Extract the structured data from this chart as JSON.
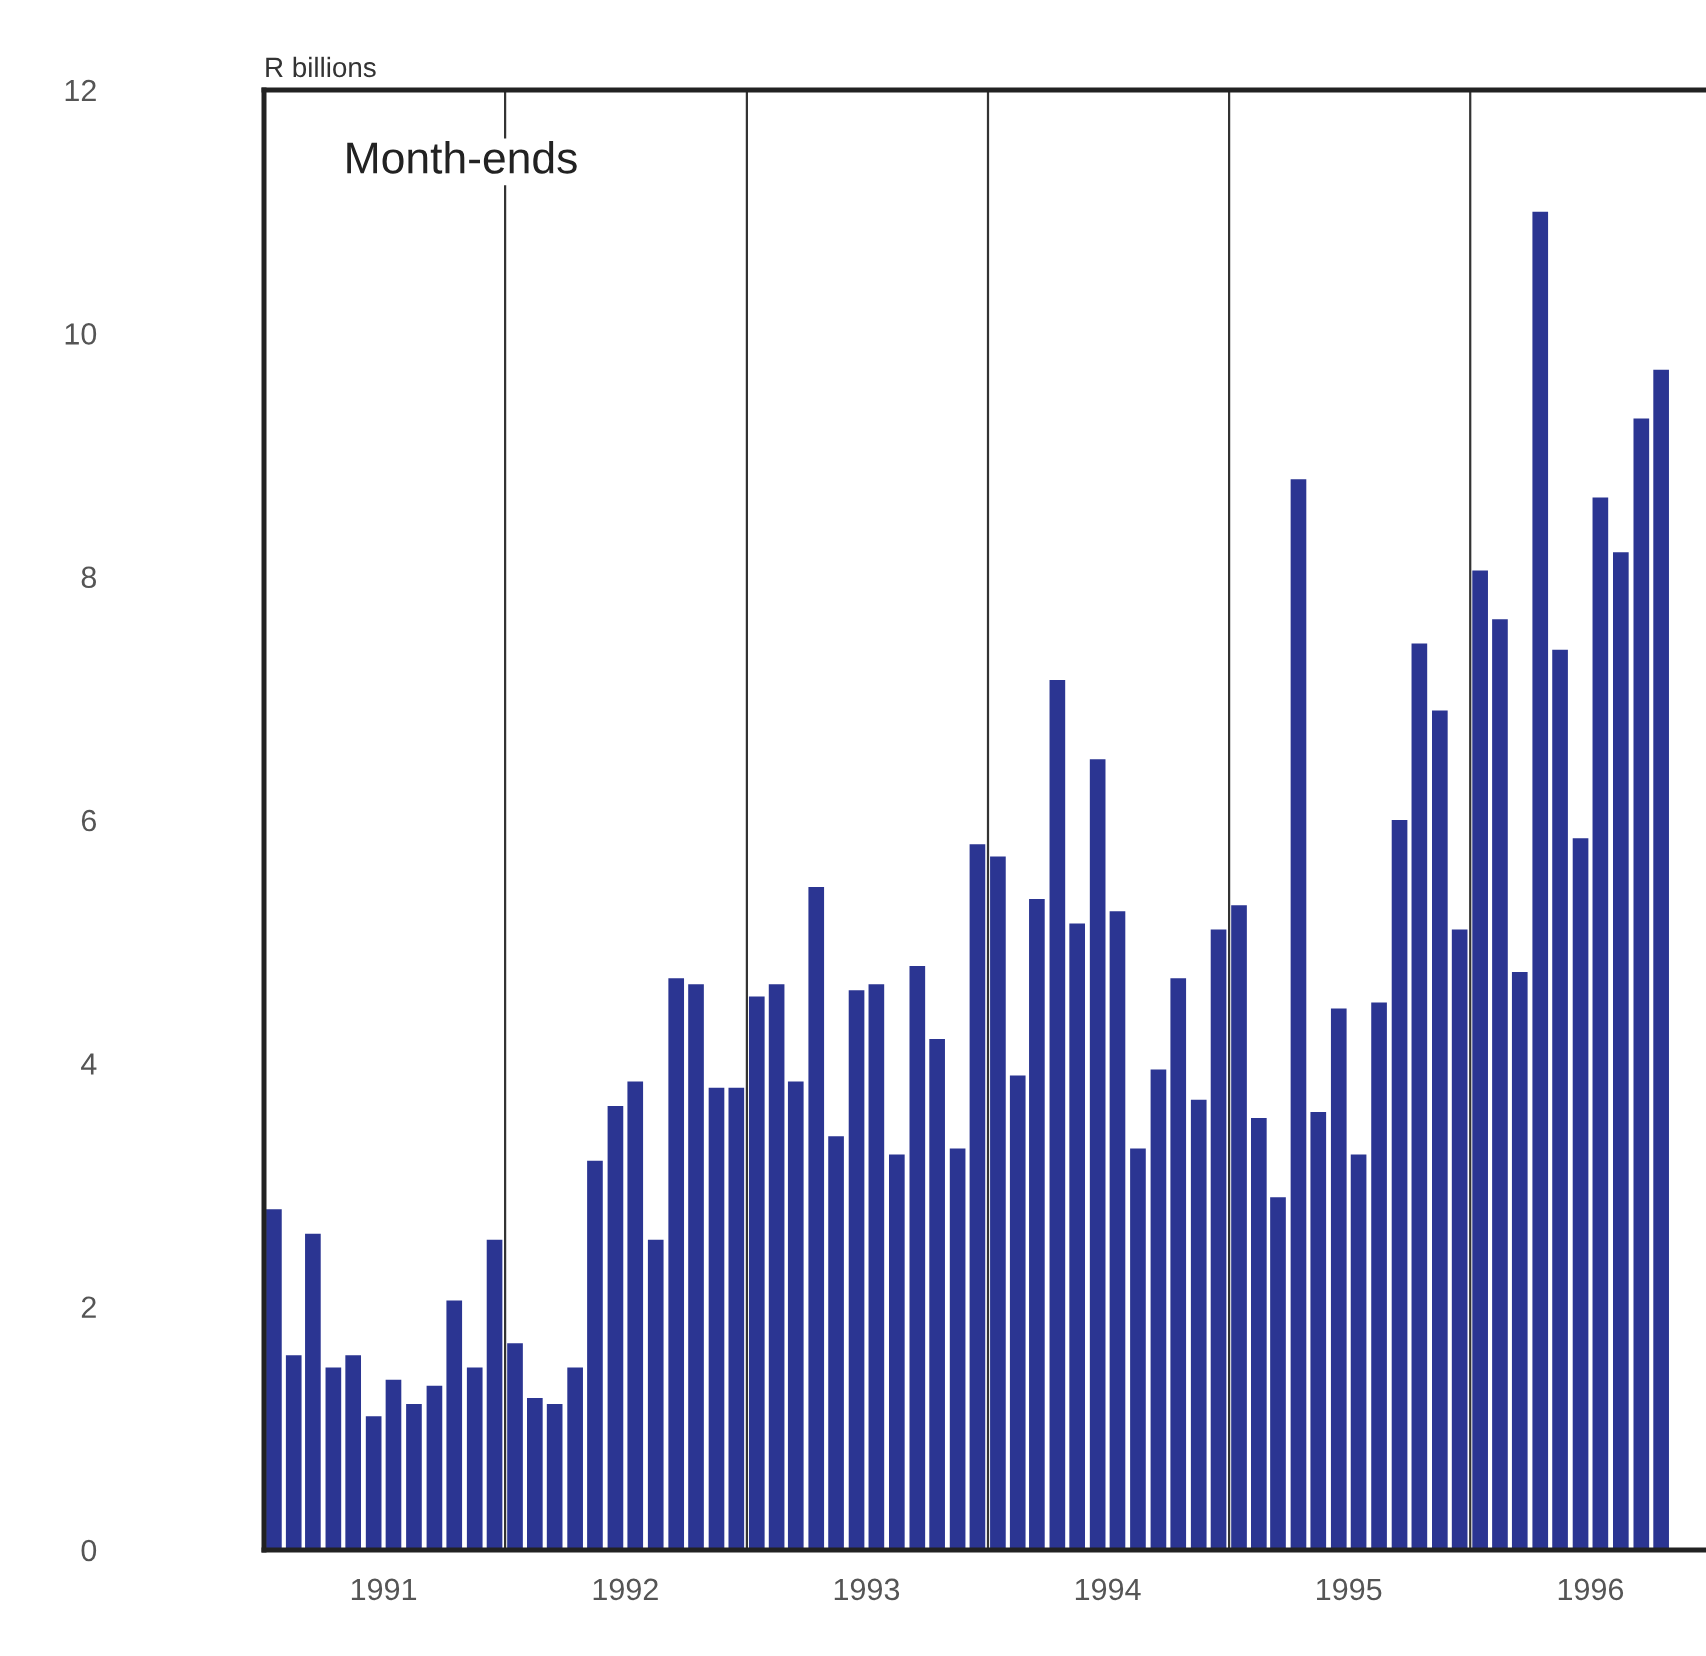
{
  "chart_data": {
    "type": "bar",
    "ylabel": "R billions",
    "annotations": [
      "Month-ends"
    ],
    "x": [
      "1991-01-16",
      "1991-02-15",
      "1991-03-16",
      "1991-04-16",
      "1991-05-16",
      "1991-06-16",
      "1991-07-16",
      "1991-08-16",
      "1991-09-16",
      "1991-10-16",
      "1991-11-16",
      "1991-12-16",
      "1992-01-16",
      "1992-02-15",
      "1992-03-16",
      "1992-04-16",
      "1992-05-16",
      "1992-06-16",
      "1992-07-16",
      "1992-08-16",
      "1992-09-16",
      "1992-10-16",
      "1992-11-16",
      "1992-12-16",
      "1993-01-16",
      "1993-02-15",
      "1993-03-16",
      "1993-04-16",
      "1993-05-16",
      "1993-06-16",
      "1993-07-16",
      "1993-08-16",
      "1993-09-16",
      "1993-10-16",
      "1993-11-16",
      "1993-12-16",
      "1994-01-16",
      "1994-02-15",
      "1994-03-16",
      "1994-04-16",
      "1994-05-16",
      "1994-06-16",
      "1994-07-16",
      "1994-08-16",
      "1994-09-16",
      "1994-10-16",
      "1994-11-16",
      "1994-12-16",
      "1995-01-16",
      "1995-02-15",
      "1995-03-16",
      "1995-04-16",
      "1995-05-16",
      "1995-06-16",
      "1995-07-16",
      "1995-08-16",
      "1995-09-16",
      "1995-10-16",
      "1995-11-16",
      "1995-12-16",
      "1996-01-16",
      "1996-02-15",
      "1996-03-16",
      "1996-04-16",
      "1996-05-16",
      "1996-06-16",
      "1996-07-16",
      "1996-08-16",
      "1996-09-16",
      "1996-10-16"
    ],
    "values": [
      2.8,
      1.6,
      2.6,
      1.5,
      1.6,
      1.1,
      1.4,
      1.2,
      1.35,
      2.05,
      1.5,
      2.55,
      1.7,
      1.25,
      1.2,
      1.5,
      3.2,
      3.65,
      3.85,
      2.55,
      4.7,
      4.65,
      3.8,
      3.8,
      4.55,
      4.65,
      3.85,
      5.45,
      3.4,
      4.6,
      4.65,
      3.25,
      4.8,
      4.2,
      3.3,
      5.8,
      5.7,
      3.9,
      5.35,
      7.15,
      5.15,
      6.5,
      5.25,
      3.3,
      3.95,
      4.7,
      3.7,
      5.1,
      5.3,
      3.55,
      2.9,
      8.8,
      3.6,
      4.45,
      3.25,
      4.5,
      6.0,
      7.45,
      6.9,
      5.1,
      8.05,
      7.65,
      4.75,
      11.0,
      7.4,
      5.85,
      8.65,
      8.2,
      9.3,
      9.7
    ],
    "color": "#2b3592",
    "xlim": [
      "1991-01",
      "1997-01"
    ],
    "xticks": [
      {
        "value": "1991-07",
        "label": "1991"
      },
      {
        "value": "1992-07",
        "label": "1992"
      },
      {
        "value": "1993-07",
        "label": "1993"
      },
      {
        "value": "1994-07",
        "label": "1994"
      },
      {
        "value": "1995-07",
        "label": "1995"
      },
      {
        "value": "1996-07",
        "label": "1996"
      }
    ],
    "ylim": [
      0,
      12
    ],
    "yticks": [
      0,
      2,
      4,
      6,
      8,
      10,
      12
    ],
    "ref_lines": [
      {
        "axis": "x",
        "value": "1992-01",
        "color": "#333333"
      },
      {
        "axis": "x",
        "value": "1993-01",
        "color": "#333333"
      },
      {
        "axis": "x",
        "value": "1994-01",
        "color": "#333333"
      },
      {
        "axis": "x",
        "value": "1995-01",
        "color": "#333333"
      },
      {
        "axis": "x",
        "value": "1996-01",
        "color": "#333333"
      }
    ],
    "grid": false,
    "legend": false
  }
}
